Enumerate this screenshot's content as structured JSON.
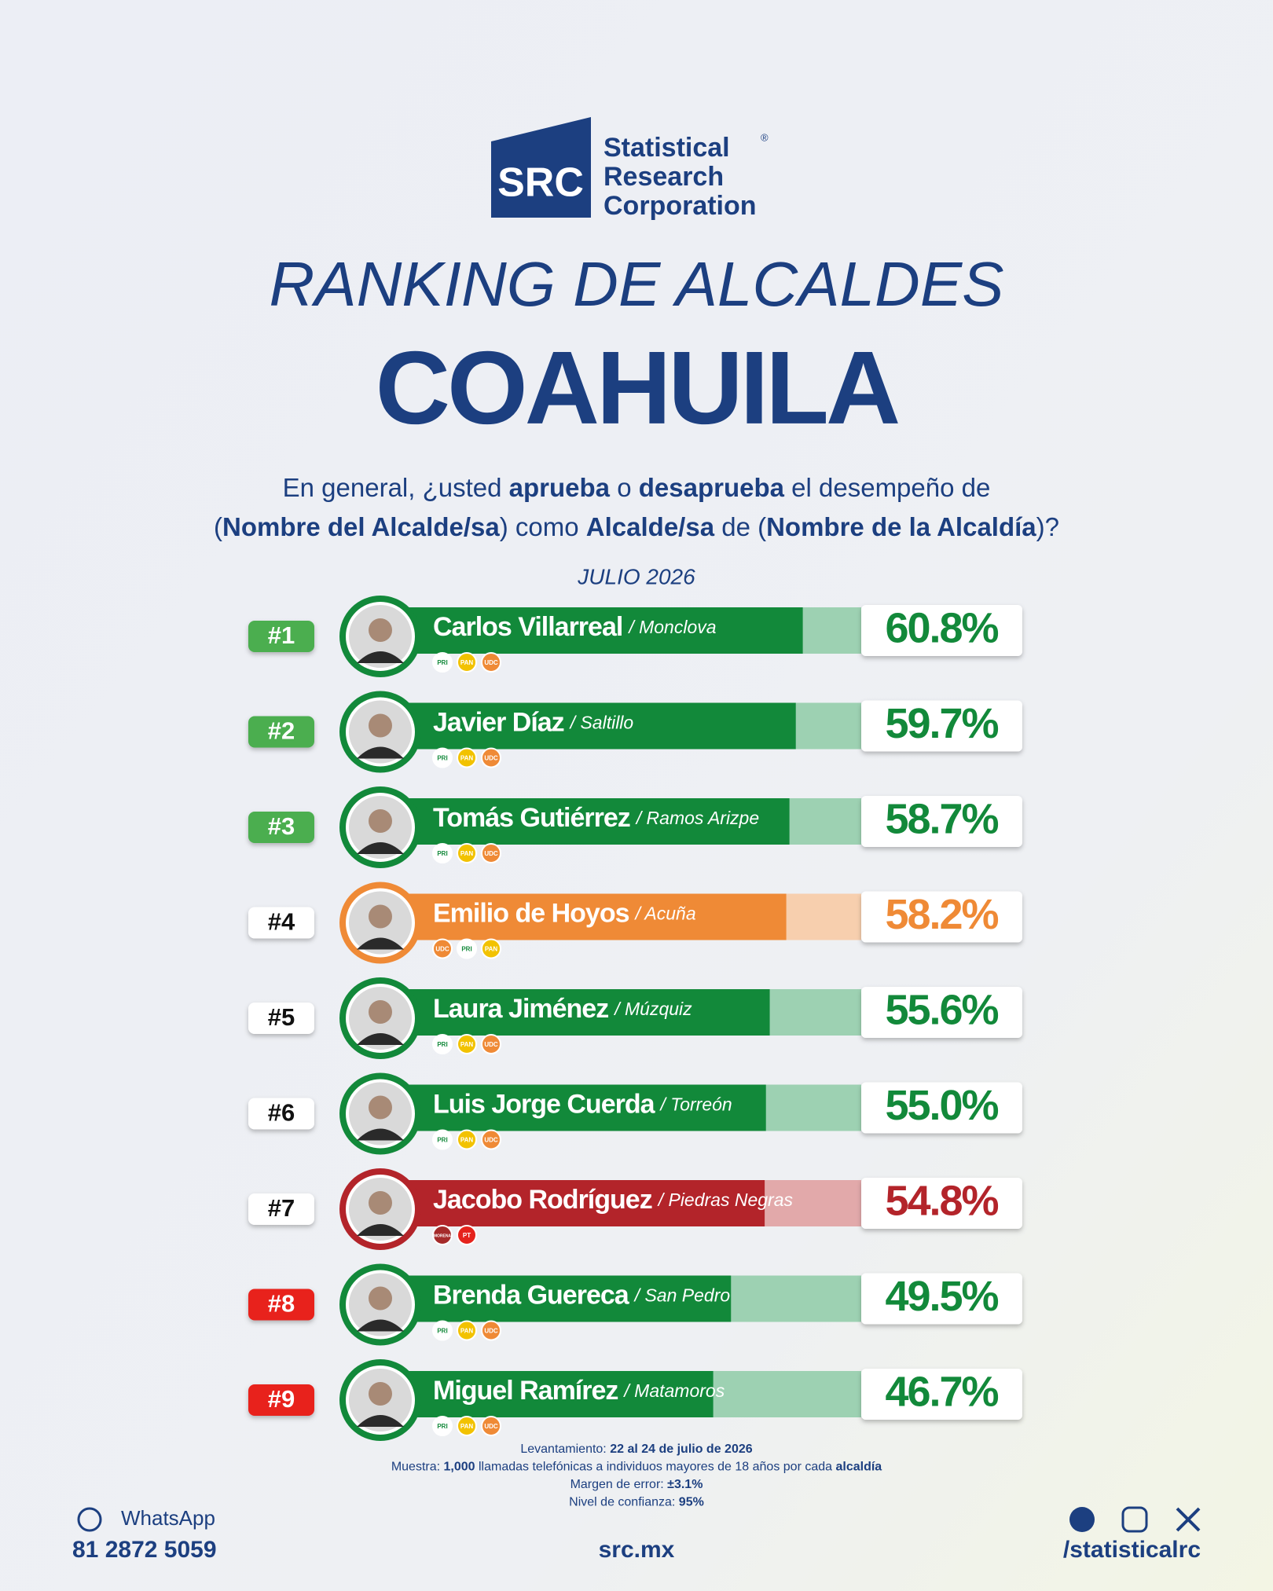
{
  "logo": {
    "mark": "SRC",
    "line1": "Statistical",
    "registered": "®",
    "line2": "Research",
    "line3": "Corporation"
  },
  "chart_data": {
    "type": "ranking",
    "title": "RANKING DE ALCALDES",
    "subtitle": "COAHUILA",
    "question": [
      [
        {
          "text": "En general, ¿usted ",
          "bold": false
        },
        {
          "text": "aprueba",
          "bold": true
        },
        {
          "text": " o ",
          "bold": false
        },
        {
          "text": "desaprueba",
          "bold": true
        },
        {
          "text": " el desempeño de",
          "bold": false
        }
      ],
      [
        {
          "text": "(",
          "bold": false
        },
        {
          "text": "Nombre del Alcalde/sa",
          "bold": true
        },
        {
          "text": ") como ",
          "bold": false
        },
        {
          "text": "Alcalde/sa",
          "bold": true
        },
        {
          "text": " de (",
          "bold": false
        },
        {
          "text": "Nombre de la Alcaldía",
          "bold": true
        },
        {
          "text": ")?",
          "bold": false
        }
      ]
    ],
    "period": "JULIO 2026",
    "ranks": [
      "#1",
      "#2",
      "#3",
      "#4",
      "#5",
      "#6",
      "#7",
      "#8",
      "#9"
    ],
    "categories": [
      "Carlos Villarreal",
      "Javier Díaz",
      "Tomás Gutiérrez",
      "Emilio de Hoyos",
      "Laura Jiménez",
      "Luis Jorge Cuerda",
      "Jacobo Rodríguez",
      "Brenda Guereca",
      "Miguel Ramírez"
    ],
    "cities": [
      "/ Monclova",
      "/ Saltillo",
      "/ Ramos Arizpe",
      "/ Acuña",
      "/ Múzquiz",
      "/ Torreón",
      "/ Piedras Negras",
      "/ San Pedro",
      "/ Matamoros"
    ],
    "values": [
      60.8,
      59.7,
      58.7,
      58.2,
      55.6,
      55.0,
      54.8,
      49.5,
      46.7
    ],
    "value_labels": [
      "60.8%",
      "59.7%",
      "58.7%",
      "58.2%",
      "55.6%",
      "55.0%",
      "54.8%",
      "49.5%",
      "46.7%"
    ],
    "colors": [
      "#12893a",
      "#12893a",
      "#12893a",
      "#ef8a36",
      "#12893a",
      "#12893a",
      "#b3242a",
      "#12893a",
      "#12893a"
    ],
    "badge_colors": [
      "#4cae4f",
      "#4cae4f",
      "#4cae4f",
      "#ffffff",
      "#ffffff",
      "#ffffff",
      "#ffffff",
      "#e8231f",
      "#e8231f"
    ],
    "parties": [
      [
        "PRI",
        "PAN",
        "UDC"
      ],
      [
        "PRI",
        "PAN",
        "UDC"
      ],
      [
        "PRI",
        "PAN",
        "UDC"
      ],
      [
        "UDC",
        "PRI",
        "PAN"
      ],
      [
        "PRI",
        "PAN",
        "UDC"
      ],
      [
        "PRI",
        "PAN",
        "UDC"
      ],
      [
        "MORENA",
        "PT"
      ],
      [
        "PRI",
        "PAN",
        "UDC"
      ],
      [
        "PRI",
        "PAN",
        "UDC"
      ]
    ]
  },
  "methodology": [
    [
      {
        "text": "Levantamiento: ",
        "bold": false
      },
      {
        "text": "22 al 24 de julio de 2026",
        "bold": true
      }
    ],
    [
      {
        "text": "Muestra: ",
        "bold": false
      },
      {
        "text": "1,000",
        "bold": true
      },
      {
        "text": " llamadas telefónicas a individuos mayores de 18 años por cada ",
        "bold": false
      },
      {
        "text": "alcaldía",
        "bold": true
      }
    ],
    [
      {
        "text": "Margen de error: ",
        "bold": false
      },
      {
        "text": "±3.1%",
        "bold": true
      }
    ],
    [
      {
        "text": "Nivel de confianza: ",
        "bold": false
      },
      {
        "text": "95%",
        "bold": true
      }
    ]
  ],
  "footer": {
    "whatsapp": "WhatsApp",
    "phone": "81 2872 5059",
    "site": "src.mx",
    "handle": "/statisticalrc"
  }
}
